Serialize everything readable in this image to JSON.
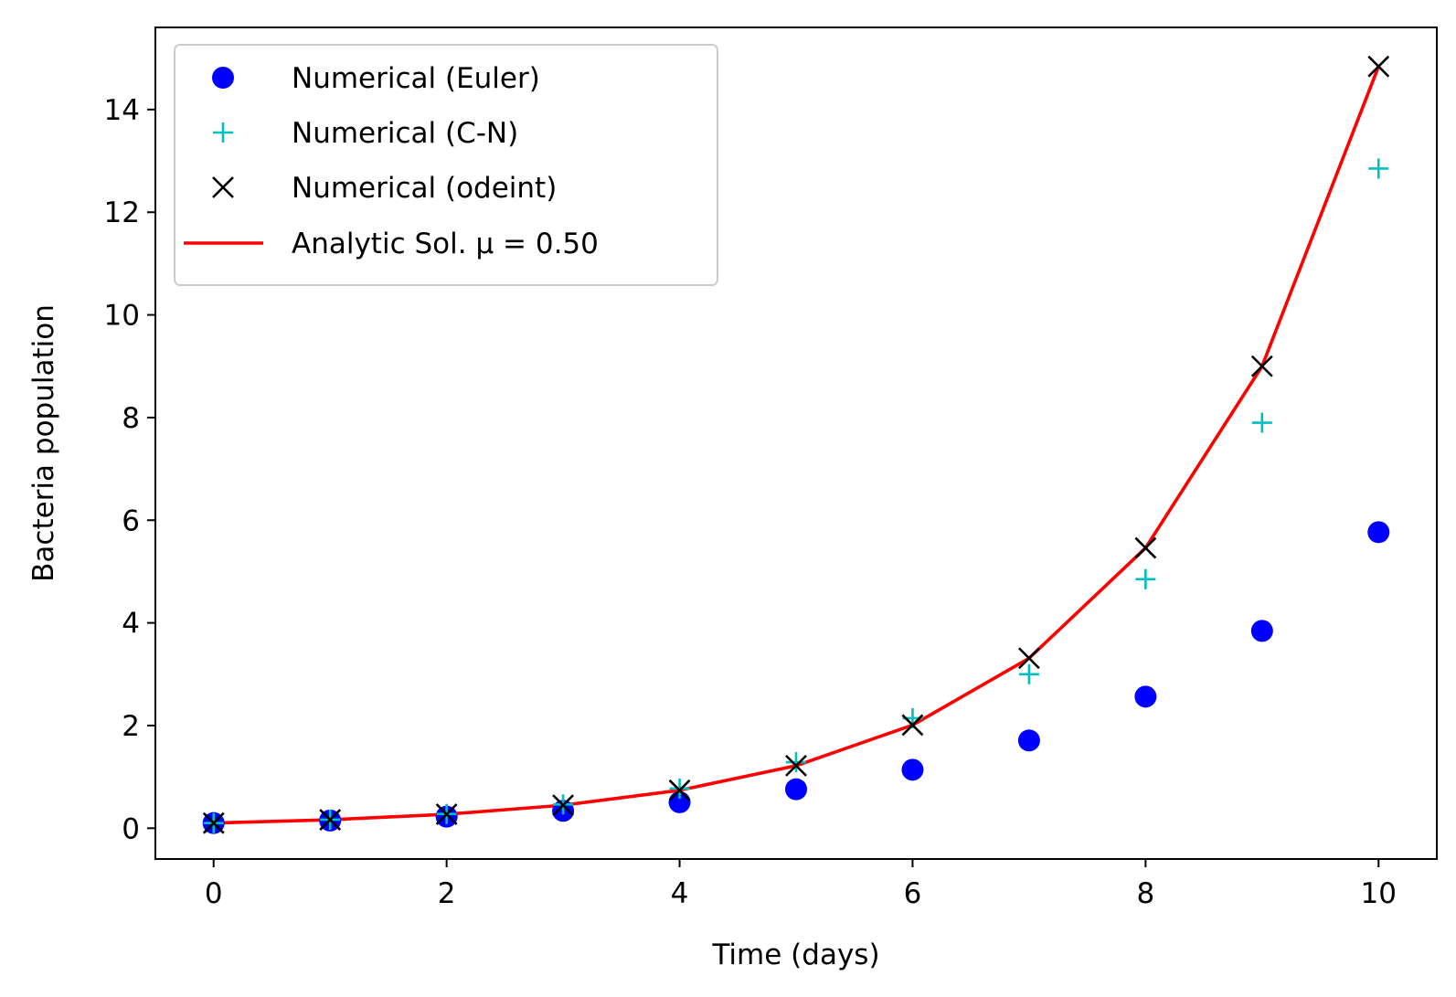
{
  "chart_data": {
    "type": "line",
    "xlabel": "Time (days)",
    "ylabel": "Bacteria population",
    "xlim": [
      -0.5,
      10.5
    ],
    "ylim": [
      -0.6,
      15.6
    ],
    "xticks": [
      0,
      2,
      4,
      6,
      8,
      10
    ],
    "yticks": [
      0,
      2,
      4,
      6,
      8,
      10,
      12,
      14
    ],
    "grid": false,
    "legend_position": "top-left",
    "x": [
      0,
      1,
      2,
      3,
      4,
      5,
      6,
      7,
      8,
      9,
      10
    ],
    "series": [
      {
        "name": "Numerical (Euler)",
        "marker": "circle",
        "color": "#0000ff",
        "values": [
          0.1,
          0.15,
          0.225,
          0.338,
          0.506,
          0.759,
          1.139,
          1.709,
          2.563,
          3.844,
          5.767
        ]
      },
      {
        "name": "Numerical (C-N)",
        "marker": "plus",
        "color": "#00bfbf",
        "values": [
          0.1,
          0.167,
          0.278,
          0.463,
          0.772,
          1.286,
          2.143,
          3.0,
          4.85,
          7.9,
          12.85
        ]
      },
      {
        "name": "Numerical (odeint)",
        "marker": "x",
        "color": "#000000",
        "values": [
          0.1,
          0.165,
          0.272,
          0.448,
          0.739,
          1.218,
          2.009,
          3.312,
          5.46,
          9.0,
          14.84
        ]
      },
      {
        "name": "Analytic Sol. μ = 0.50",
        "marker": "line",
        "color": "#ff0000",
        "values": [
          0.1,
          0.165,
          0.272,
          0.448,
          0.739,
          1.218,
          2.009,
          3.312,
          5.46,
          9.0,
          14.84
        ]
      }
    ]
  }
}
